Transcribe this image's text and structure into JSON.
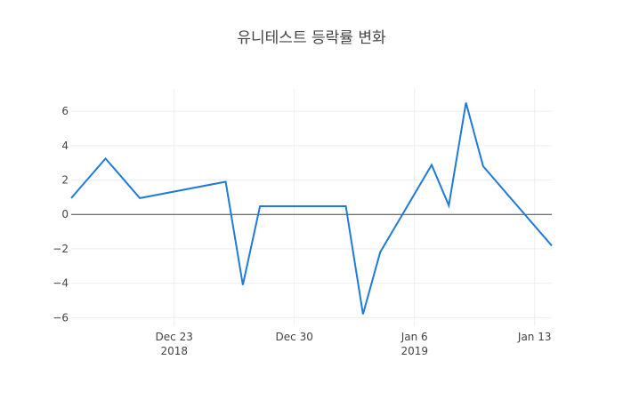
{
  "chart_data": {
    "type": "line",
    "title": "유니테스트 등락률 변화",
    "xlabel": "",
    "ylabel": "",
    "x": [
      "2018-12-17",
      "2018-12-19",
      "2018-12-21",
      "2018-12-26",
      "2018-12-27",
      "2018-12-28",
      "2019-01-02",
      "2019-01-03",
      "2019-01-04",
      "2019-01-07",
      "2019-01-08",
      "2019-01-09",
      "2019-01-10",
      "2019-01-14"
    ],
    "series": [
      {
        "values": [
          0.95,
          3.25,
          0.95,
          1.9,
          -4.1,
          0.48,
          0.48,
          -5.8,
          -2.2,
          2.88,
          0.52,
          6.5,
          2.8,
          -1.82
        ]
      }
    ],
    "xlim": [
      "2018-12-17",
      "2019-01-14"
    ],
    "ylim": [
      -6.5,
      7.3
    ],
    "y_ticks": [
      {
        "value": -6,
        "label": "−6"
      },
      {
        "value": -4,
        "label": "−4"
      },
      {
        "value": -2,
        "label": "−2"
      },
      {
        "value": 0,
        "label": "0"
      },
      {
        "value": 2,
        "label": "2"
      },
      {
        "value": 4,
        "label": "4"
      },
      {
        "value": 6,
        "label": "6"
      }
    ],
    "x_ticks": [
      {
        "date": "2018-12-23",
        "label": "Dec 23",
        "sublabel": "2018"
      },
      {
        "date": "2018-12-30",
        "label": "Dec 30",
        "sublabel": ""
      },
      {
        "date": "2019-01-06",
        "label": "Jan 6",
        "sublabel": "2019"
      },
      {
        "date": "2019-01-13",
        "label": "Jan 13",
        "sublabel": ""
      }
    ],
    "grid": true,
    "zero_line": true,
    "colors": {
      "line": "#1f7ad9",
      "grid": "#eeeeee",
      "zero": "#444444",
      "text": "#444444"
    }
  }
}
